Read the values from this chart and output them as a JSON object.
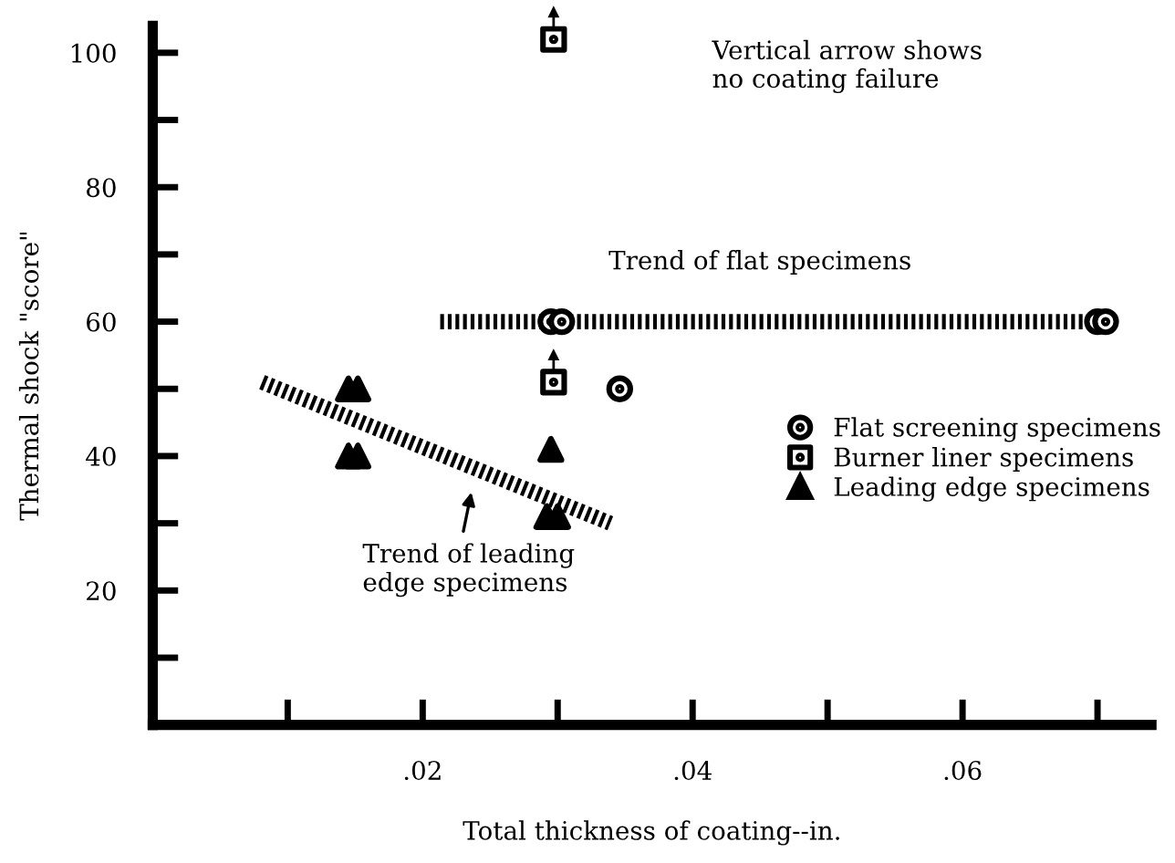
{
  "chart_data": {
    "type": "scatter",
    "xlabel": "Total thickness of coating--in.",
    "ylabel": "Thermal shock \"score\"",
    "xlim": [
      0,
      0.074
    ],
    "ylim": [
      0,
      104
    ],
    "xticks": [
      {
        "value": 0.01,
        "label": null
      },
      {
        "value": 0.02,
        "label": ".02"
      },
      {
        "value": 0.03,
        "label": null
      },
      {
        "value": 0.04,
        "label": ".04"
      },
      {
        "value": 0.05,
        "label": null
      },
      {
        "value": 0.06,
        "label": ".06"
      },
      {
        "value": 0.07,
        "label": null
      }
    ],
    "yticks": [
      {
        "value": 10,
        "label": null
      },
      20,
      {
        "value": 30,
        "label": null
      },
      40,
      {
        "value": 50,
        "label": null
      },
      60,
      {
        "value": 70,
        "label": null
      },
      80,
      {
        "value": 90,
        "label": null
      },
      100
    ],
    "grid": false,
    "legend": "right",
    "series": [
      {
        "name": "Flat screening specimens",
        "color": "#000000",
        "marker": "circle",
        "x": [
          0.0295,
          0.0303,
          0.0346,
          0.07,
          0.0706
        ],
        "values": [
          60,
          60,
          50,
          60,
          60
        ]
      },
      {
        "name": "Burner liner specimens",
        "color": "#000000",
        "marker": "square",
        "x": [
          0.0297,
          0.0297
        ],
        "values": [
          102,
          51
        ]
      },
      {
        "name": "Leading edge specimens",
        "color": "#000000",
        "marker": "triangle",
        "x": [
          0.0145,
          0.0152,
          0.0145,
          0.0152,
          0.0295,
          0.0292,
          0.03
        ],
        "values": [
          50,
          50,
          40,
          40,
          41,
          31,
          31
        ]
      },
      {
        "type": "line",
        "color": "#000000",
        "line_style": "dotted",
        "x": [
          0.0213,
          0.0693
        ],
        "values": [
          60,
          60
        ]
      },
      {
        "type": "line",
        "color": "#000000",
        "line_style": "dotted",
        "x": [
          0.0081,
          0.0339
        ],
        "values": [
          51,
          30
        ]
      }
    ],
    "annotations": [
      "Vertical arrow shows\nno coating failure",
      {
        "text": "Trend of flat specimens",
        "x": 0.045,
        "y": 60
      },
      "Trend of leading\nedge specimens"
    ]
  }
}
